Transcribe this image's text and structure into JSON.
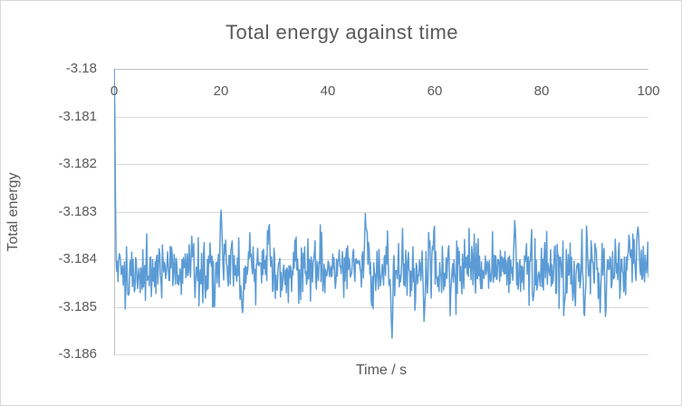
{
  "chart_data": {
    "type": "line",
    "title": "Total energy against time",
    "xlabel": "Time / s",
    "ylabel": "Total energy",
    "xlim": [
      0,
      100
    ],
    "ylim": [
      -3.186,
      -3.18
    ],
    "x_ticks": [
      "0",
      "20",
      "40",
      "60",
      "80",
      "100"
    ],
    "x_tick_values": [
      0,
      20,
      40,
      60,
      80,
      100
    ],
    "y_ticks": [
      "-3.18",
      "-3.181",
      "-3.182",
      "-3.183",
      "-3.184",
      "-3.185",
      "-3.186"
    ],
    "y_tick_values": [
      -3.18,
      -3.181,
      -3.182,
      -3.183,
      -3.184,
      -3.185,
      -3.186
    ],
    "grid": "horizontal-only",
    "legend": false,
    "colors": {
      "series": "#5b9bd5",
      "text": "#595959",
      "gridline": "#d9d9d9",
      "axis_line": "#bfbfbf",
      "frame_border": "#d9d9d9",
      "background": "#ffffff"
    },
    "series": [
      {
        "name": "Total energy",
        "description": "Dense noisy signal: starts at -3.180 at t=0, decays within ~1 s to a fluctuating band centred near -3.1842 (typical range -3.1852 to -3.1833)",
        "start_value": -3.18,
        "settled_mean": -3.1842,
        "noise_std": 0.00033,
        "decay_time_constant_s": 0.15,
        "noise_ramp_s": 0.8,
        "n_points": 820,
        "seed": 1337,
        "anomaly_halfwidth_s": 0.32,
        "notable_points": [
          {
            "x": 0,
            "y": -3.18
          },
          {
            "x": 20,
            "y": -3.1829
          },
          {
            "x": 24,
            "y": -3.1852
          },
          {
            "x": 29,
            "y": -3.1831
          },
          {
            "x": 47,
            "y": -3.183
          },
          {
            "x": 52,
            "y": -3.1857
          },
          {
            "x": 58,
            "y": -3.1853
          },
          {
            "x": 75,
            "y": -3.1831
          },
          {
            "x": 88,
            "y": -3.1853
          },
          {
            "x": 92,
            "y": -3.1853
          },
          {
            "x": 98,
            "y": -3.1832
          }
        ]
      }
    ]
  },
  "layout_labels": {
    "title": "Total energy against time",
    "y_axis_title": "Total energy",
    "x_axis_title": "Time / s"
  }
}
